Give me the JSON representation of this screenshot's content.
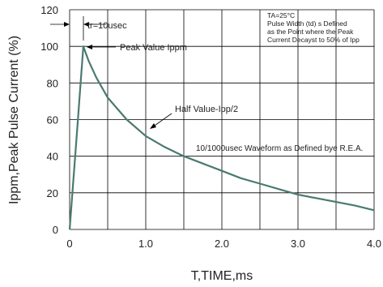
{
  "chart_data": {
    "type": "line",
    "title": "",
    "xlabel": "T,TIME,ms",
    "ylabel": "Ippm,Peak Pulse Current (%)",
    "xlim": [
      0,
      4.0
    ],
    "ylim": [
      0,
      120
    ],
    "grid": true,
    "x_ticks": [
      {
        "value": 0,
        "label": "0"
      },
      {
        "value": 1.0,
        "label": "1.0"
      },
      {
        "value": 2.0,
        "label": "2.0"
      },
      {
        "value": 3.0,
        "label": "3.0"
      },
      {
        "value": 4.0,
        "label": "4.0"
      }
    ],
    "y_ticks": [
      {
        "value": 0,
        "label": "0"
      },
      {
        "value": 20,
        "label": "20"
      },
      {
        "value": 40,
        "label": "40"
      },
      {
        "value": 60,
        "label": "60"
      },
      {
        "value": 80,
        "label": "80"
      },
      {
        "value": 100,
        "label": "100"
      },
      {
        "value": 120,
        "label": "120"
      }
    ],
    "series": [
      {
        "color": "#4a7a70",
        "x": [
          0,
          0.1,
          0.18,
          0.25,
          0.35,
          0.5,
          0.75,
          1.0,
          1.25,
          1.5,
          1.75,
          2.0,
          2.25,
          2.5,
          2.75,
          3.0,
          3.25,
          3.5,
          3.75,
          4.0
        ],
        "y": [
          0,
          55,
          100,
          92,
          83,
          72,
          60,
          51,
          45,
          40,
          36,
          32,
          28,
          25,
          22,
          19,
          17,
          15,
          13,
          10.5
        ]
      }
    ],
    "annotations": {
      "tr": {
        "text": "tr=10usec"
      },
      "peak": {
        "text": "Peak  Value  Ippm"
      },
      "half": {
        "text": "Half  Value-Ipp/2"
      },
      "waveform": {
        "text": "10/1000usec  Waveform as Defined bye R.E.A."
      },
      "conditions": [
        "TA=25°C",
        "Pulse  Width (td) s  Defined",
        "as the Point  where the Peak",
        "Current  Decayst to 50% of Ipp"
      ]
    }
  }
}
